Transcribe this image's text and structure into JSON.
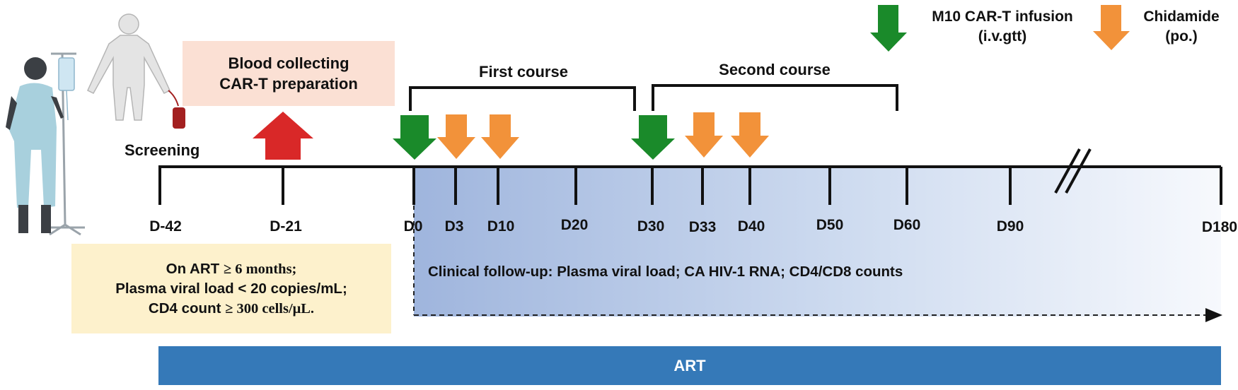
{
  "phases": {
    "screening": "Screening",
    "preparation_line1": "Blood collecting",
    "preparation_line2": "CAR-T preparation",
    "first_course": "First course",
    "second_course": "Second course"
  },
  "timeline_days": [
    "D-42",
    "D-21",
    "D0",
    "D3",
    "D10",
    "D20",
    "D30",
    "D33",
    "D40",
    "D50",
    "D60",
    "D90",
    "D180"
  ],
  "criteria": {
    "line1_a": "On ART ",
    "line1_b": "≥ 6 months;",
    "line2": "Plasma viral load < 20 copies/mL;",
    "line3_a": "CD4 count ",
    "line3_b": "≥ 300 cells/μL."
  },
  "followup": "Clinical follow-up: Plasma viral load; CA HIV-1 RNA; CD4/CD8 counts",
  "art_bar": "ART",
  "legend": {
    "car_t_line1": "M10 CAR-T infusion",
    "car_t_line2": "(i.v.gtt)",
    "chidamide_line1": "Chidamide",
    "chidamide_line2": "(po.)"
  },
  "colors": {
    "car_t_arrow": "#1a8a2a",
    "chidamide_arrow": "#f2923a",
    "collection_arrow": "#d92828",
    "art_bar": "#3579b8",
    "followup_gradient_start": "#9fb5dd",
    "criteria_box": "#fdf1cc",
    "preparation_box": "#fbe0d4"
  },
  "icons": [
    "patient-iv-icon",
    "blood-donor-icon"
  ]
}
